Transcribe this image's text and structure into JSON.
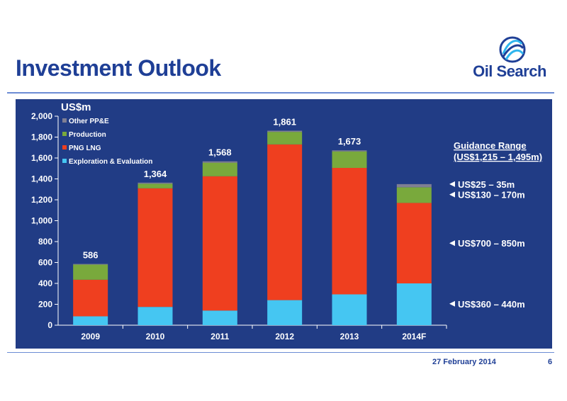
{
  "header": {
    "title": "Investment Outlook",
    "brand": "Oil Search"
  },
  "footer": {
    "date": "27 February 2014",
    "page": "6"
  },
  "colors": {
    "panel": "#213c85",
    "Other PP&E": "#7f7f93",
    "Production": "#79a93c",
    "PNG LNG": "#ef3f1f",
    "Exploration & Evaluation": "#45c6f2"
  },
  "chart_data": {
    "type": "bar",
    "stacked": true,
    "ylabel": "US$m",
    "ylim": [
      0,
      2000
    ],
    "yticks": [
      0,
      200,
      400,
      600,
      800,
      1000,
      1200,
      1400,
      1600,
      1800,
      2000
    ],
    "ytick_labels": [
      "0",
      "200",
      "400",
      "600",
      "800",
      "1,000",
      "1,200",
      "1,400",
      "1,600",
      "1,800",
      "2,000"
    ],
    "categories": [
      "2009",
      "2010",
      "2011",
      "2012",
      "2013",
      "2014F"
    ],
    "totals": [
      "586",
      "1,364",
      "1,568",
      "1,861",
      "1,673",
      ""
    ],
    "legend_position": "top-left",
    "series": [
      {
        "name": "Exploration & Evaluation",
        "values": [
          85,
          175,
          140,
          240,
          295,
          400
        ]
      },
      {
        "name": "PNG LNG",
        "values": [
          350,
          1135,
          1285,
          1490,
          1210,
          770
        ]
      },
      {
        "name": "Production",
        "values": [
          145,
          44,
          130,
          120,
          158,
          150
        ]
      },
      {
        "name": "Other PP&E",
        "values": [
          6,
          10,
          13,
          11,
          10,
          30
        ]
      }
    ],
    "legend_order": [
      "Other PP&E",
      "Production",
      "PNG LNG",
      "Exploration & Evaluation"
    ],
    "guidance": {
      "title_line1": "Guidance Range",
      "title_line2": "(US$1,215 – 1,495m)",
      "items": [
        {
          "label": "US$25 – 35m",
          "value": 1350
        },
        {
          "label": "US$130 – 170m",
          "value": 1250
        },
        {
          "label": "US$700 – 850m",
          "value": 785
        },
        {
          "label": "US$360 – 440m",
          "value": 205
        }
      ]
    }
  }
}
